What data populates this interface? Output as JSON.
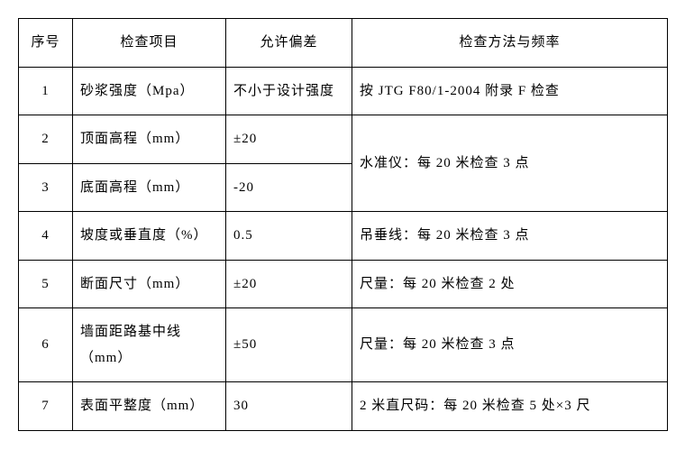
{
  "headers": {
    "seq": "序号",
    "item": "检查项目",
    "tolerance": "允许偏差",
    "method": "检查方法与频率"
  },
  "rows": [
    {
      "seq": "1",
      "item": "砂浆强度（Mpa）",
      "tolerance": "不小于设计强度",
      "method": "按 JTG F80/1-2004 附录 F 检查"
    },
    {
      "seq": "2",
      "item": "顶面高程（mm）",
      "tolerance": "±20",
      "method": "水准仪：每 20 米检查 3 点"
    },
    {
      "seq": "3",
      "item": "底面高程（mm）",
      "tolerance": "-20",
      "method": ""
    },
    {
      "seq": "4",
      "item": "坡度或垂直度（%）",
      "tolerance": "0.5",
      "method": "吊垂线：每 20 米检查 3 点"
    },
    {
      "seq": "5",
      "item": "断面尺寸（mm）",
      "tolerance": "±20",
      "method": "尺量：每 20 米检查 2 处"
    },
    {
      "seq": "6",
      "item": "墙面距路基中线（mm）",
      "tolerance": "±50",
      "method": "尺量：每 20 米检查 3 点"
    },
    {
      "seq": "7",
      "item": "表面平整度（mm）",
      "tolerance": "30",
      "method": "2 米直尺码：每 20 米检查 5 处×3 尺"
    }
  ]
}
